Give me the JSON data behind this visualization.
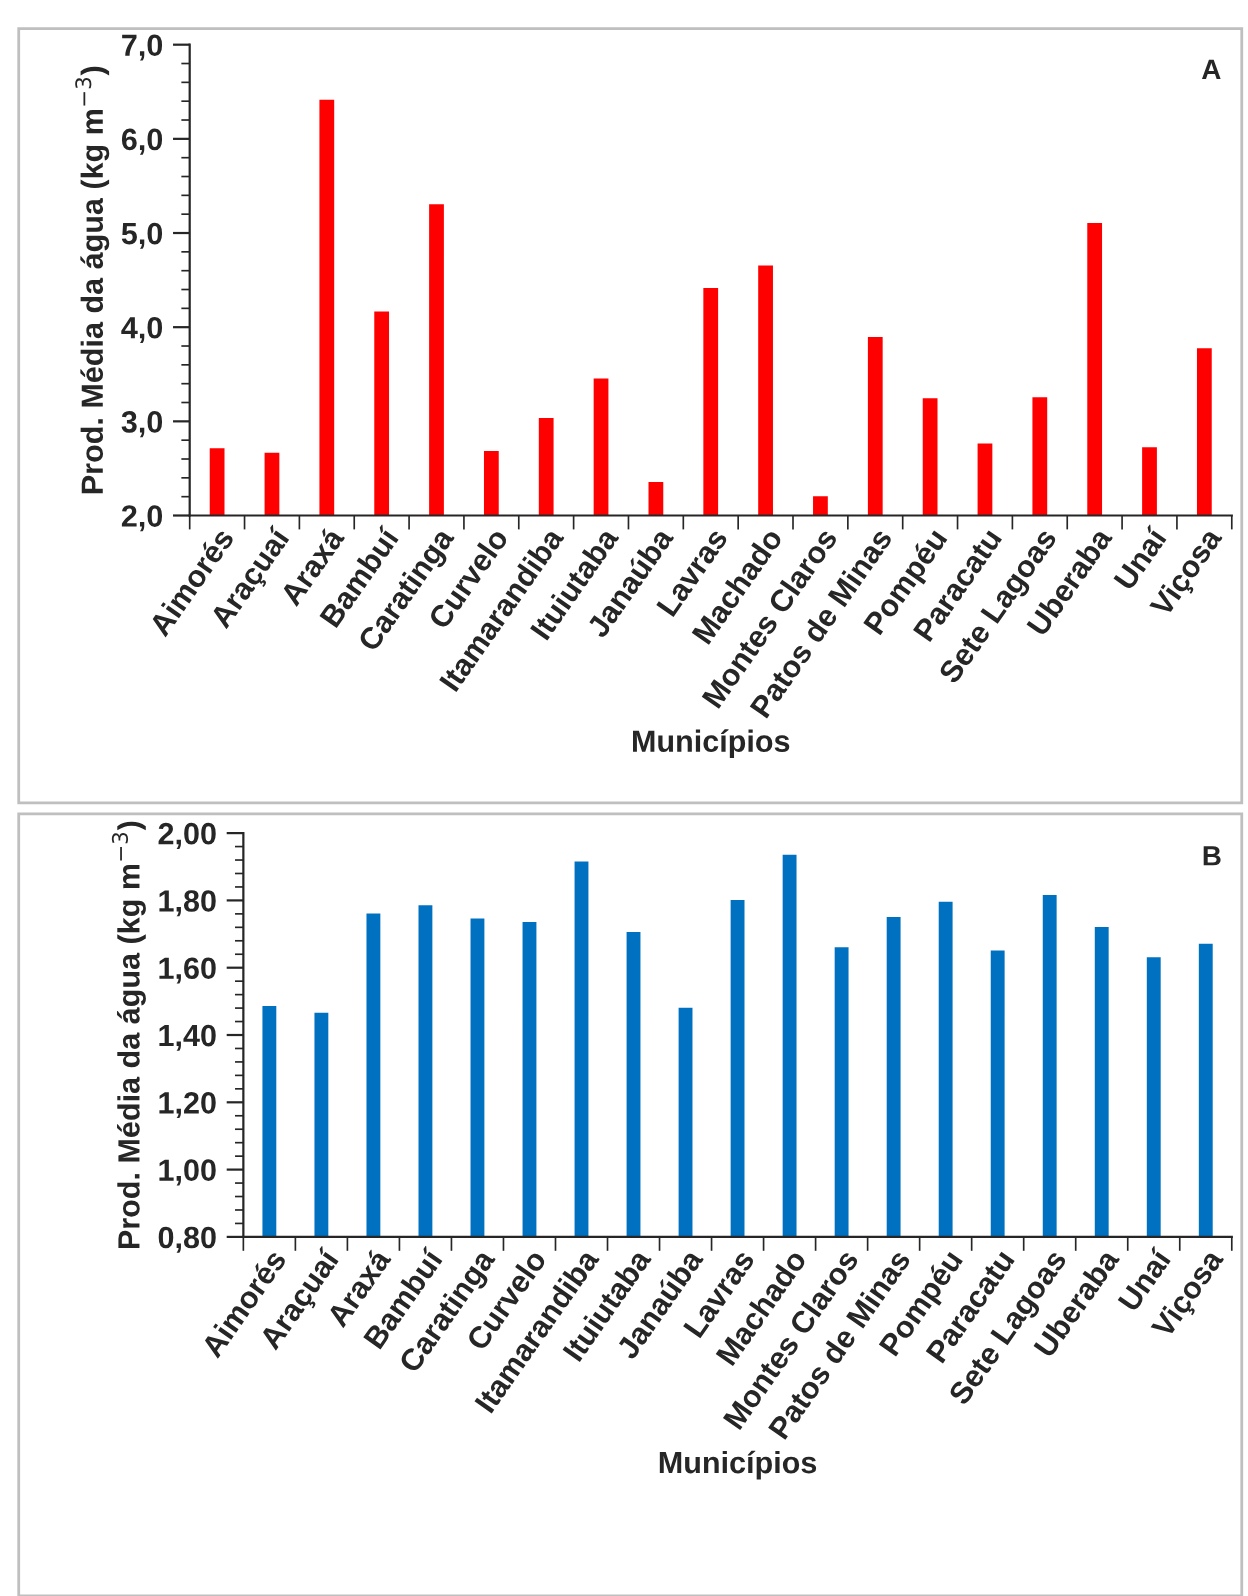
{
  "chart_data": [
    {
      "type": "bar",
      "annotations": [
        "A"
      ],
      "xlabel": "Municípios",
      "ylabel": "Prod. Média da água (kg m$^{−3}$)",
      "categories": [
        "Aimorés",
        "Araçuaí",
        "Araxá",
        "Bambuí",
        "Caratinga",
        "Curvelo",
        "Itamarandiba",
        "Ituiutaba",
        "Janaúba",
        "Lavras",
        "Machado",
        "Montes Claros",
        "Patos de Minas",
        "Pompéu",
        "Paracatu",
        "Sete Lagoas",
        "Uberaba",
        "Unaí",
        "Viçosa"
      ],
      "values": [
        2.73,
        2.68,
        6.43,
        4.18,
        5.32,
        2.7,
        3.05,
        3.47,
        2.37,
        4.43,
        4.67,
        2.22,
        3.91,
        3.26,
        2.78,
        3.27,
        5.12,
        2.74,
        3.79
      ],
      "color": "#ff0000",
      "ylim": [
        2.0,
        7.0
      ],
      "yticks": [
        {
          "value": 2.0,
          "label": "2,0"
        },
        {
          "value": 3.0,
          "label": "3,0"
        },
        {
          "value": 4.0,
          "label": "4,0"
        },
        {
          "value": 5.0,
          "label": "5,0"
        },
        {
          "value": 6.0,
          "label": "6,0"
        },
        {
          "value": 7.0,
          "label": "7,0"
        }
      ],
      "grid": false,
      "legend": false
    },
    {
      "type": "bar",
      "annotations": [
        "B"
      ],
      "xlabel": "Municípios",
      "ylabel": "Prod. Média da água (kg m$^{−3}$)",
      "categories": [
        "Aimorés",
        "Araçuaí",
        "Araxá",
        "Bambuí",
        "Caratinga",
        "Curvelo",
        "Itamarandiba",
        "Ituiutaba",
        "Janaúba",
        "Lavras",
        "Machado",
        "Montes Claros",
        "Patos de Minas",
        "Pompéu",
        "Paracatu",
        "Sete Lagoas",
        "Uberaba",
        "Unaí",
        "Viçosa"
      ],
      "values": [
        1.49,
        1.47,
        1.765,
        1.79,
        1.75,
        1.74,
        1.92,
        1.71,
        1.485,
        1.805,
        1.94,
        1.665,
        1.755,
        1.8,
        1.655,
        1.82,
        1.725,
        1.635,
        1.675
      ],
      "color": "#0070c0",
      "ylim": [
        0.8,
        2.0
      ],
      "yticks": [
        {
          "value": 0.8,
          "label": "0,80"
        },
        {
          "value": 1.0,
          "label": "1,00"
        },
        {
          "value": 1.2,
          "label": "1,20"
        },
        {
          "value": 1.4,
          "label": "1,40"
        },
        {
          "value": 1.6,
          "label": "1,60"
        },
        {
          "value": 1.8,
          "label": "1,80"
        },
        {
          "value": 2.0,
          "label": "2,00"
        }
      ],
      "grid": false,
      "legend": false
    }
  ]
}
